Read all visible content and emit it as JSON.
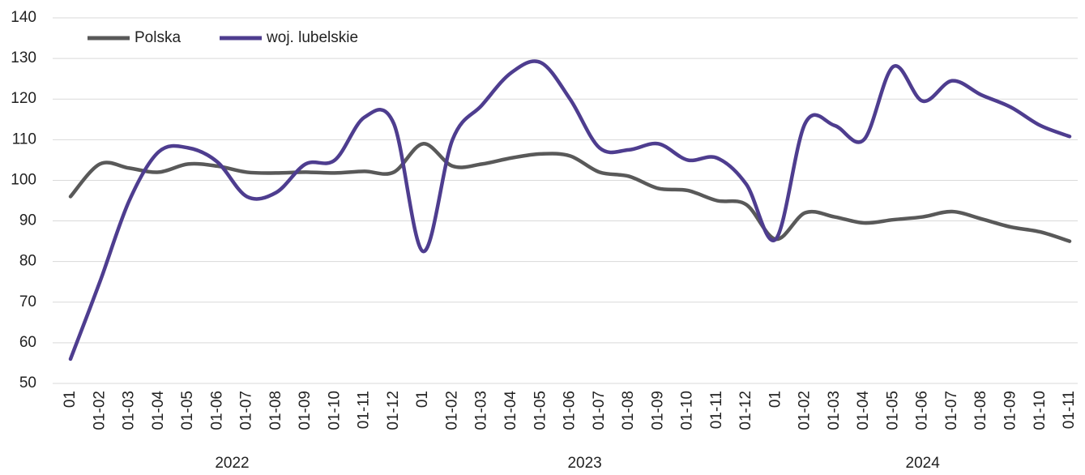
{
  "chart_data": {
    "type": "line",
    "categories": [
      "01",
      "01-02",
      "01-03",
      "01-04",
      "01-05",
      "01-06",
      "01-07",
      "01-08",
      "01-09",
      "01-10",
      "01-11",
      "01-12",
      "01",
      "01-02",
      "01-03",
      "01-04",
      "01-05",
      "01-06",
      "01-07",
      "01-08",
      "01-09",
      "01-10",
      "01-11",
      "01-12",
      "01",
      "01-02",
      "01-03",
      "01-04",
      "01-05",
      "01-06",
      "01-07",
      "01-08",
      "01-09",
      "01-10",
      "01-11"
    ],
    "x_groups": [
      "2022",
      "2023",
      "2024"
    ],
    "series": [
      {
        "name": "Polska",
        "color": "#595959",
        "values": [
          96,
          104,
          103,
          102,
          104,
          103.5,
          102,
          101.8,
          102,
          101.8,
          102.2,
          102,
          109,
          103.5,
          104,
          105.5,
          106.5,
          106,
          102,
          101,
          98,
          97.5,
          95,
          94,
          85.5,
          92,
          91,
          89.5,
          90.3,
          91,
          92.3,
          90.5,
          88.5,
          87.3,
          85
        ]
      },
      {
        "name": "woj. lubelskie",
        "color": "#4e3d8f",
        "values": [
          56,
          75,
          95,
          107,
          108,
          104.5,
          96,
          97,
          104,
          105,
          115.5,
          114,
          82.5,
          110,
          118.5,
          126.5,
          129,
          120,
          108,
          107.5,
          109,
          105,
          105.5,
          99,
          85.5,
          114,
          113.5,
          110,
          128,
          119.5,
          124.5,
          121,
          118,
          113.5,
          110.8
        ]
      }
    ],
    "ylim": [
      50,
      140
    ],
    "yticks": [
      50,
      60,
      70,
      80,
      90,
      100,
      110,
      120,
      130,
      140
    ],
    "grid": true,
    "legend": "top-left",
    "smooth": true
  }
}
